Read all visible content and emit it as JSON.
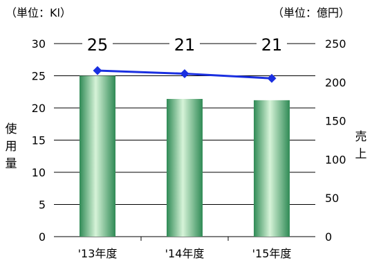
{
  "chart_data": {
    "type": "bar",
    "categories": [
      "'13年度",
      "'14年度",
      "'15年度"
    ],
    "series": [
      {
        "axis": "left",
        "values": [
          25,
          21.4,
          21.2
        ]
      },
      {
        "axis": "right",
        "values": [
          215,
          211,
          205
        ]
      }
    ],
    "data_labels": [
      "25",
      "21",
      "21"
    ],
    "left_axis": {
      "unit_label": "（単位：Kl）",
      "title_chars": [
        "使",
        "用",
        "量"
      ],
      "ylim": [
        0,
        30
      ],
      "ticks": [
        0,
        5,
        10,
        15,
        20,
        25,
        30
      ]
    },
    "right_axis": {
      "unit_label": "（単位：億円）",
      "title_chars": [
        "売",
        "上"
      ],
      "ylim": [
        0,
        250
      ],
      "ticks": [
        0,
        50,
        100,
        150,
        200,
        250
      ]
    },
    "grid": true,
    "colors": {
      "bar_dark": "#2f8a55",
      "bar_light": "#d6f3d8",
      "line": "#1a2fe0",
      "grid": "#000000"
    }
  }
}
